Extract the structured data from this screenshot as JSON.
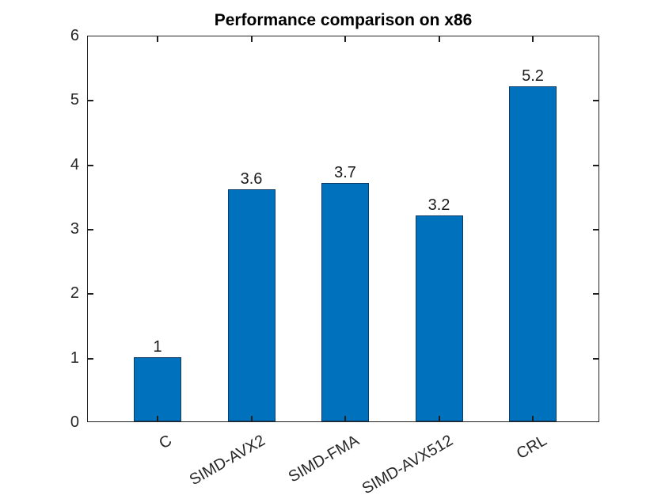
{
  "chart_data": {
    "type": "bar",
    "title": "Performance comparison on x86",
    "categories": [
      "C",
      "SIMD-AVX2",
      "SIMD-FMA",
      "SIMD-AVX512",
      "CRL"
    ],
    "values": [
      1,
      3.6,
      3.7,
      3.2,
      5.2
    ],
    "value_labels": [
      "1",
      "3.6",
      "3.7",
      "3.2",
      "5.2"
    ],
    "xlabel": "",
    "ylabel": "",
    "ylim": [
      0,
      6
    ],
    "yticks": [
      0,
      1,
      2,
      3,
      4,
      5,
      6
    ],
    "grid": false,
    "legend": null,
    "box": true,
    "x_tick_label_rotation_deg": 30,
    "bar_fill_color": "#0072BD",
    "bar_edge_color": "#0d3b66",
    "axis_color": "#222222",
    "tick_label_color": "#262626",
    "title_color": "#000000",
    "background_color": "#ffffff"
  }
}
